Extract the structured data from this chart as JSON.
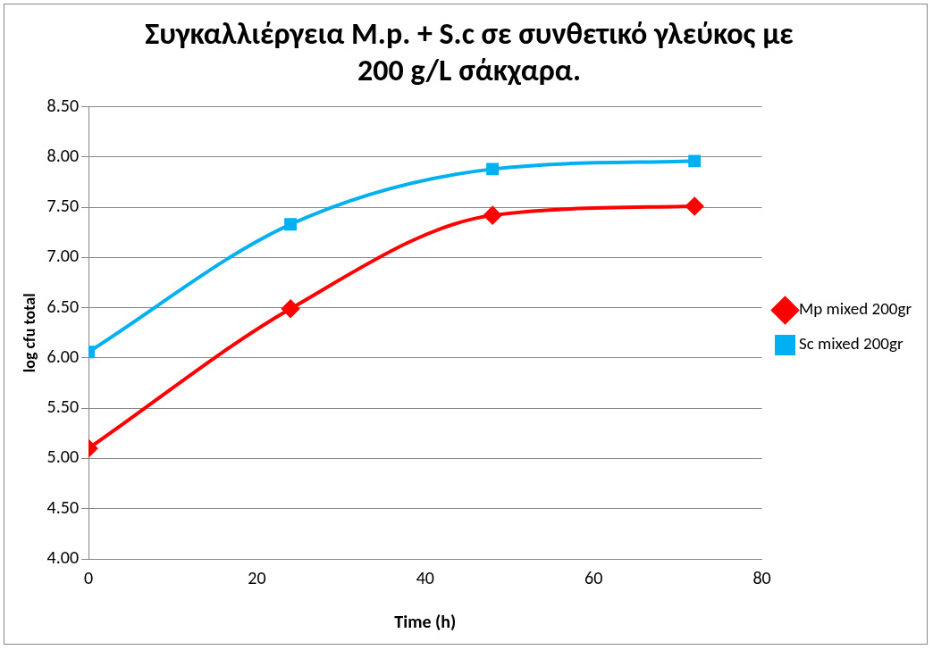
{
  "chart_data": {
    "type": "line",
    "title": "Συγκαλλιέργεια M.p. + S.c σε συνθετικό γλεύκος με 200 g/L σάκχαρα.",
    "xlabel": "Time (h)",
    "ylabel": "log cfu total",
    "x": [
      0,
      24,
      48,
      72
    ],
    "series": [
      {
        "name": "Mp mixed 200gr",
        "color": "#ff0000",
        "marker": "diamond",
        "values": [
          5.1,
          6.49,
          7.42,
          7.51
        ]
      },
      {
        "name": "Sc mixed 200gr",
        "color": "#00b0f0",
        "marker": "square",
        "values": [
          6.06,
          7.33,
          7.88,
          7.96
        ]
      }
    ],
    "xlim": [
      0,
      80
    ],
    "xticks": [
      0,
      20,
      40,
      60,
      80
    ],
    "ylim": [
      4,
      8.5
    ],
    "yticks": [
      {
        "value": 4,
        "label": "4.00"
      },
      {
        "value": 4.5,
        "label": "4.50"
      },
      {
        "value": 5,
        "label": "5.00"
      },
      {
        "value": 5.5,
        "label": "5.50"
      },
      {
        "value": 6,
        "label": "6.00"
      },
      {
        "value": 6.5,
        "label": "6.50"
      },
      {
        "value": 7,
        "label": "7.00"
      },
      {
        "value": 7.5,
        "label": "7.50"
      },
      {
        "value": 8,
        "label": "8.00"
      },
      {
        "value": 8.5,
        "label": "8.50"
      }
    ],
    "grid": "y",
    "legend": "right",
    "line_style": "solid"
  }
}
